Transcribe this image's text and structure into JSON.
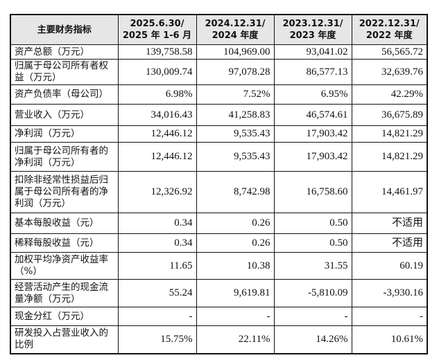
{
  "table": {
    "headers": [
      "主要财务指标",
      "2025.6.30/\n2025 年 1-6 月",
      "2024.12.31/\n2024 年度",
      "2023.12.31/\n2023 年度",
      "2022.12.31/\n2022 年度"
    ],
    "rows": [
      {
        "label": "资产总额（万元）",
        "values": [
          "139,758.58",
          "104,969.00",
          "93,041.02",
          "56,565.72"
        ]
      },
      {
        "label": "归属于母公司所有者权益（万元）",
        "values": [
          "130,009.74",
          "97,078.28",
          "86,577.13",
          "32,639.76"
        ]
      },
      {
        "label": "资产负债率（母公司）",
        "values": [
          "6.98%",
          "7.52%",
          "6.95%",
          "42.29%"
        ]
      },
      {
        "label": "营业收入（万元）",
        "values": [
          "34,016.43",
          "41,258.83",
          "46,574.61",
          "36,675.89"
        ]
      },
      {
        "label": "净利润（万元）",
        "values": [
          "12,446.12",
          "9,535.43",
          "17,903.42",
          "14,821.29"
        ]
      },
      {
        "label": "归属于母公司所有者的净利润（万元）",
        "values": [
          "12,446.12",
          "9,535.43",
          "17,903.42",
          "14,821.29"
        ]
      },
      {
        "label": "扣除非经常性损益后归属于母公司所有者的净利润（万元）",
        "values": [
          "12,326.92",
          "8,742.98",
          "16,758.60",
          "14,461.97"
        ]
      },
      {
        "label": "基本每股收益（元）",
        "values": [
          "0.34",
          "0.26",
          "0.50",
          "不适用"
        ]
      },
      {
        "label": "稀释每股收益（元）",
        "values": [
          "0.34",
          "0.26",
          "0.50",
          "不适用"
        ]
      },
      {
        "label": "加权平均净资产收益率（%）",
        "values": [
          "11.65",
          "10.38",
          "31.55",
          "60.19"
        ]
      },
      {
        "label": "经营活动产生的现金流量净额（万元）",
        "values": [
          "55.24",
          "9,619.81",
          "-5,810.09",
          "-3,930.16"
        ]
      },
      {
        "label": "现金分红（万元）",
        "values": [
          "-",
          "-",
          "-",
          "-"
        ]
      },
      {
        "label": "研发投入占营业收入的比例",
        "values": [
          "15.75%",
          "22.11%",
          "14.26%",
          "10.61%"
        ]
      }
    ]
  }
}
